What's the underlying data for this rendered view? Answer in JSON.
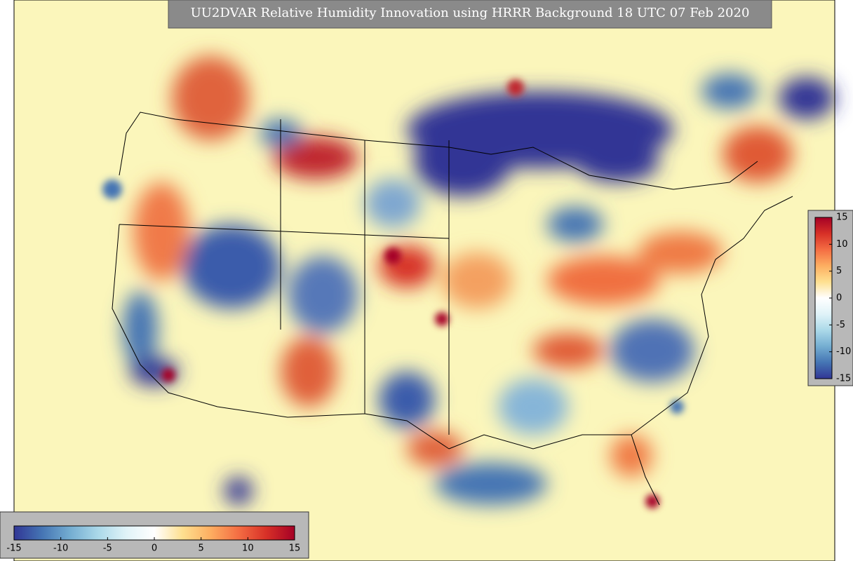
{
  "chart_data": {
    "type": "map",
    "title": "UU2DVAR Relative Humidity Innovation using HRRR Background 18 UTC 07 Feb 2020",
    "clim": [
      -15,
      15
    ],
    "colormap": [
      "#313695",
      "#4575b4",
      "#74add1",
      "#abd9e9",
      "#e0f3f8",
      "#ffffff",
      "#fee090",
      "#fdae61",
      "#f46d43",
      "#d73027",
      "#a50026"
    ],
    "colorbars": [
      {
        "orientation": "horizontal",
        "ticks": [
          -15,
          -10,
          -5,
          0,
          5,
          10,
          15
        ]
      },
      {
        "orientation": "vertical",
        "ticks": [
          15,
          10,
          5,
          0,
          -5,
          -10,
          -15
        ]
      }
    ]
  }
}
